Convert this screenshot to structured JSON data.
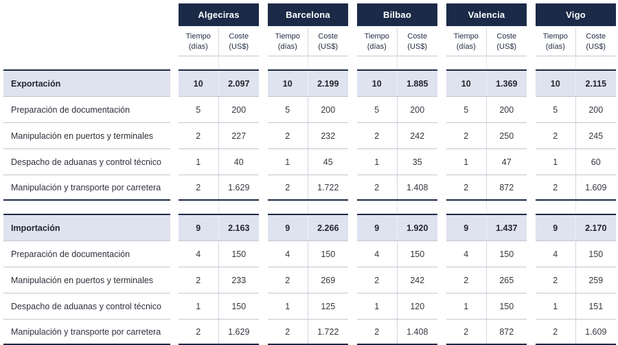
{
  "chart_data": {
    "type": "table",
    "ports": [
      "Algeciras",
      "Barcelona",
      "Bilbao",
      "Valencia",
      "Vigo"
    ],
    "col_headers": {
      "time": {
        "line1": "Tiempo",
        "line2": "(días)"
      },
      "cost": {
        "line1": "Coste",
        "line2": "(US$)"
      }
    },
    "sections": [
      {
        "label": "Exportación",
        "totals": [
          [
            "10",
            "2.097"
          ],
          [
            "10",
            "2.199"
          ],
          [
            "10",
            "1.885"
          ],
          [
            "10",
            "1.369"
          ],
          [
            "10",
            "2.115"
          ]
        ],
        "rows": [
          {
            "label": "Preparación de documentación",
            "values": [
              [
                "5",
                "200"
              ],
              [
                "5",
                "200"
              ],
              [
                "5",
                "200"
              ],
              [
                "5",
                "200"
              ],
              [
                "5",
                "200"
              ]
            ]
          },
          {
            "label": "Manipulación en puertos y terminales",
            "values": [
              [
                "2",
                "227"
              ],
              [
                "2",
                "232"
              ],
              [
                "2",
                "242"
              ],
              [
                "2",
                "250"
              ],
              [
                "2",
                "245"
              ]
            ]
          },
          {
            "label": "Despacho de aduanas y control técnico",
            "values": [
              [
                "1",
                "40"
              ],
              [
                "1",
                "45"
              ],
              [
                "1",
                "35"
              ],
              [
                "1",
                "47"
              ],
              [
                "1",
                "60"
              ]
            ]
          },
          {
            "label": "Manipulación y transporte por carretera",
            "values": [
              [
                "2",
                "1.629"
              ],
              [
                "2",
                "1.722"
              ],
              [
                "2",
                "1.408"
              ],
              [
                "2",
                "872"
              ],
              [
                "2",
                "1.609"
              ]
            ]
          }
        ]
      },
      {
        "label": "Importación",
        "totals": [
          [
            "9",
            "2.163"
          ],
          [
            "9",
            "2.266"
          ],
          [
            "9",
            "1.920"
          ],
          [
            "9",
            "1.437"
          ],
          [
            "9",
            "2.170"
          ]
        ],
        "rows": [
          {
            "label": "Preparación de documentación",
            "values": [
              [
                "4",
                "150"
              ],
              [
                "4",
                "150"
              ],
              [
                "4",
                "150"
              ],
              [
                "4",
                "150"
              ],
              [
                "4",
                "150"
              ]
            ]
          },
          {
            "label": "Manipulación en puertos y terminales",
            "values": [
              [
                "2",
                "233"
              ],
              [
                "2",
                "269"
              ],
              [
                "2",
                "242"
              ],
              [
                "2",
                "265"
              ],
              [
                "2",
                "259"
              ]
            ]
          },
          {
            "label": "Despacho de aduanas y control técnico",
            "values": [
              [
                "1",
                "150"
              ],
              [
                "1",
                "125"
              ],
              [
                "1",
                "120"
              ],
              [
                "1",
                "150"
              ],
              [
                "1",
                "151"
              ]
            ]
          },
          {
            "label": "Manipulación y transporte por carretera",
            "values": [
              [
                "2",
                "1.629"
              ],
              [
                "2",
                "1.722"
              ],
              [
                "2",
                "1.408"
              ],
              [
                "2",
                "872"
              ],
              [
                "2",
                "1.609"
              ]
            ]
          }
        ]
      }
    ]
  },
  "colors": {
    "header_navy": "#1b2a47",
    "section_lavender": "#dfe2ef",
    "row_line_gray": "#c3c6cd",
    "column_divider": "#d2d6e2",
    "dark_rule": "#1b2a47",
    "header_text": "#ffffff",
    "body_text": "#35373e"
  }
}
